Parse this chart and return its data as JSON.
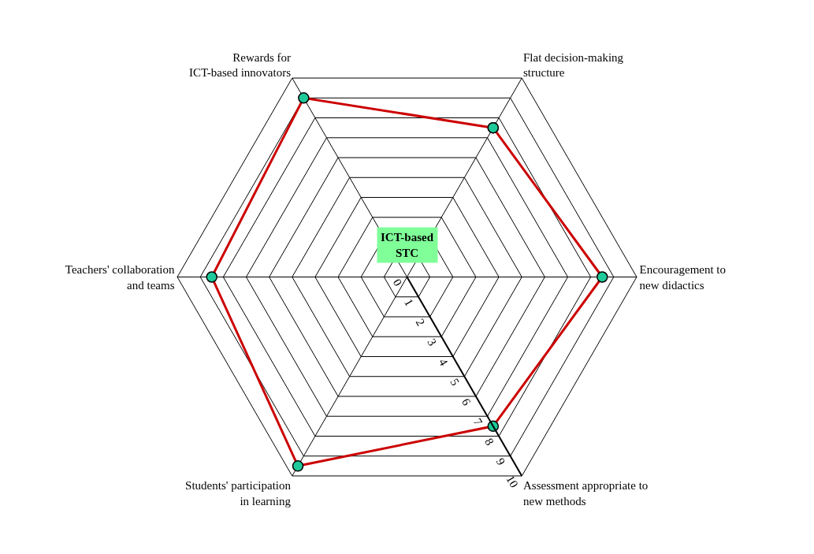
{
  "chart_data": {
    "type": "radar",
    "categories": [
      "Flat decision-making structure",
      "Encouragement to new didactics",
      "Assessment appropriate to new methods",
      "Students' participation in learning",
      "Teachers' collaboration and teams",
      "Rewards for ICT-based innovators"
    ],
    "series": [
      {
        "color": "#cc0000",
        "values": [
          7.5,
          8.5,
          7.5,
          9.5,
          8.5,
          9
        ]
      }
    ],
    "colors": [
      "#1fc99a",
      "#1fc99a",
      "#1fc99a",
      "#1fc99a",
      "#1fc99a",
      "#1fc99a"
    ],
    "ylim": [
      0,
      10
    ],
    "yticks": [
      0,
      1,
      2,
      3,
      4,
      5,
      6,
      7,
      8,
      9,
      10
    ],
    "grid": true,
    "marker": "circle",
    "annotations": [
      "ICT-based STC"
    ]
  }
}
